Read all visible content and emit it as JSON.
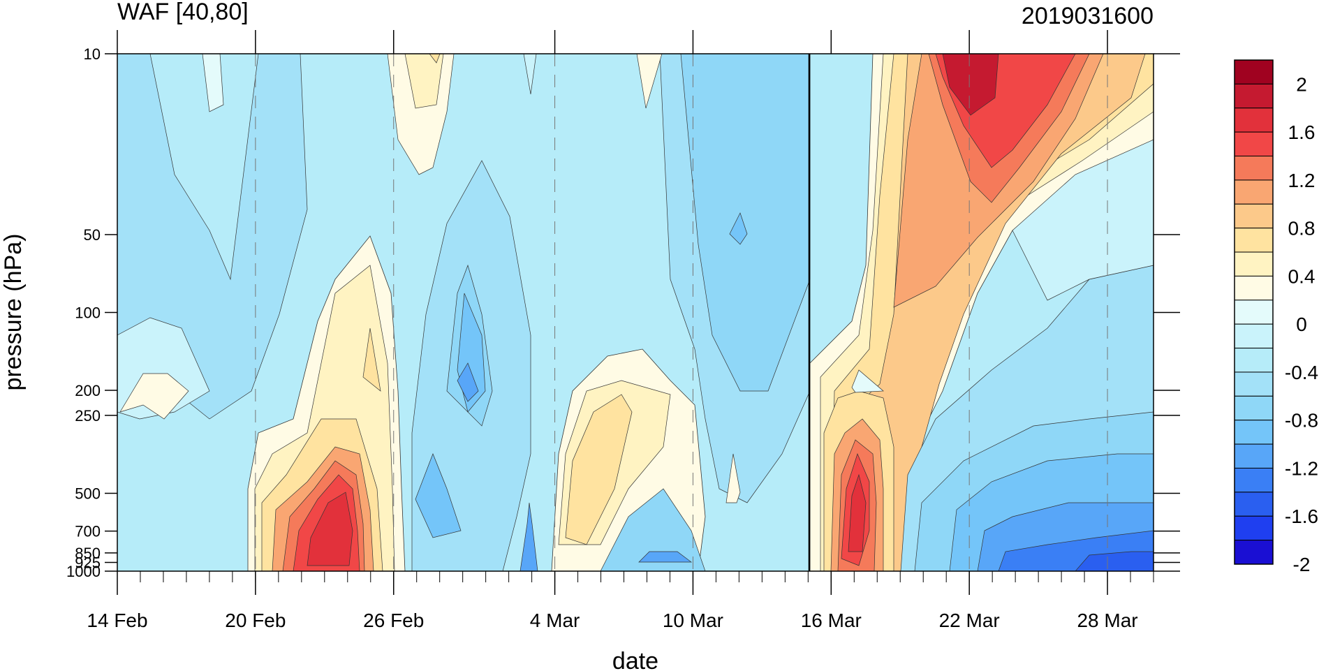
{
  "chart_data": {
    "type": "heatmap",
    "title": "WAF [40,80]",
    "subtitle": "2019031600",
    "xlabel": "date",
    "ylabel": "pressure (hPa)",
    "x_ticks": [
      "14 Feb",
      "20 Feb",
      "26 Feb",
      "4 Mar",
      "10 Mar",
      "16 Mar",
      "22 Mar",
      "28 Mar"
    ],
    "x_range": [
      "14 Feb",
      "31 Mar"
    ],
    "y_ticks": [
      "10",
      "50",
      "100",
      "200",
      "250",
      "500",
      "700",
      "850",
      "925",
      "1000"
    ],
    "y_range": [
      1000,
      10
    ],
    "y_scale": "log",
    "marked_date": "16 Mar",
    "colorbar": {
      "levels": [
        -2.2,
        -2.0,
        -1.8,
        -1.6,
        -1.4,
        -1.2,
        -1.0,
        -0.8,
        -0.6,
        -0.4,
        -0.2,
        0.0,
        0.2,
        0.4,
        0.6,
        0.8,
        1.0,
        1.2,
        1.4,
        1.6,
        1.8,
        2.0,
        2.2
      ],
      "colors": [
        "#1a0fd3",
        "#1f3ff0",
        "#2a5ff0",
        "#3a7ff5",
        "#58a6f8",
        "#74c5f9",
        "#8fd7f7",
        "#a3e1f8",
        "#b6ecf9",
        "#caf3fb",
        "#e4fbfb",
        "#fffbe5",
        "#fff3c2",
        "#ffe3a0",
        "#fcc98a",
        "#f9a672",
        "#f57a5a",
        "#f14747",
        "#e2313b",
        "#c51a30",
        "#a00220"
      ],
      "tick_labels": [
        "2",
        "1.6",
        "1.2",
        "0.8",
        "0.4",
        "0",
        "-0.4",
        "-0.8",
        "-1.2",
        "-1.6",
        "-2"
      ]
    },
    "grid": "dashed vertical at x ticks",
    "legend": "right colorbar",
    "field_description": "Wave activity flux at pressure vs date; values in colorbar units",
    "sample_field": {
      "dates": [
        "14 Feb",
        "17 Feb",
        "20 Feb",
        "23 Feb",
        "26 Feb",
        "1 Mar",
        "4 Mar",
        "7 Mar",
        "10 Mar",
        "13 Mar",
        "16 Mar",
        "18 Mar",
        "20 Mar",
        "22 Mar",
        "25 Mar",
        "28 Mar",
        "31 Mar"
      ],
      "pressure_levels": [
        10,
        50,
        100,
        200,
        500,
        700,
        1000
      ],
      "values": [
        [
          -0.4,
          -0.2,
          -0.4,
          -0.6,
          0.2,
          -0.4,
          -0.4,
          -0.4,
          -0.4,
          -0.6,
          -0.6,
          0.6,
          1.4,
          2.0,
          1.8,
          1.2,
          0.6
        ],
        [
          -0.4,
          -0.4,
          -0.6,
          -0.4,
          -0.2,
          -0.6,
          -0.6,
          -0.4,
          -0.4,
          -0.6,
          -0.4,
          0.4,
          1.0,
          1.4,
          1.2,
          0.6,
          0.0
        ],
        [
          -0.2,
          -0.4,
          -0.6,
          0.2,
          -0.2,
          -0.6,
          -0.4,
          -0.4,
          -0.6,
          -0.6,
          -0.4,
          0.2,
          0.8,
          0.8,
          0.4,
          -0.2,
          -0.4
        ],
        [
          0.0,
          -0.4,
          -0.4,
          0.4,
          -0.2,
          -0.8,
          -0.4,
          0.0,
          -0.2,
          -0.4,
          -0.2,
          0.4,
          0.4,
          0.2,
          -0.2,
          -0.4,
          -0.6
        ],
        [
          -0.2,
          -0.4,
          0.4,
          1.6,
          -0.4,
          -0.6,
          -0.4,
          0.6,
          0.2,
          -0.2,
          0.0,
          1.6,
          -0.4,
          -0.6,
          -0.8,
          -0.8,
          -1.2
        ],
        [
          -0.2,
          -0.4,
          0.6,
          2.0,
          -0.4,
          -0.6,
          -0.8,
          0.8,
          -0.2,
          -0.2,
          0.2,
          2.0,
          -0.4,
          -0.8,
          -1.2,
          -1.4,
          -1.6
        ],
        [
          0.0,
          -0.2,
          0.6,
          1.8,
          0.0,
          -0.4,
          -0.6,
          0.2,
          -0.8,
          -0.2,
          0.0,
          1.6,
          -0.2,
          -1.0,
          -1.4,
          -1.6,
          -1.8
        ]
      ]
    }
  }
}
